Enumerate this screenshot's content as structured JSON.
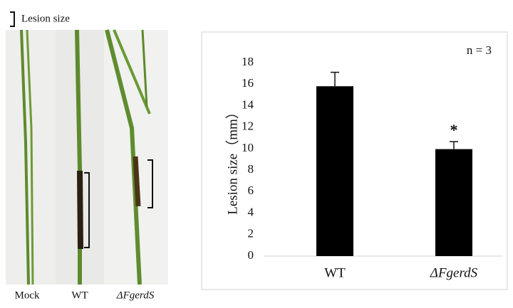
{
  "photo": {
    "legend": "Lesion size",
    "labels": [
      "Mock",
      "WT",
      "ΔFgerdS"
    ]
  },
  "chart_data": {
    "type": "bar",
    "annotation": "n = 3",
    "significance": "*",
    "y_label": "Lesion size（mm）",
    "categories": [
      "WT",
      "ΔFgerdS"
    ],
    "values": [
      15.8,
      9.95
    ],
    "errors": [
      1.3,
      0.7
    ],
    "color": "#000000",
    "ylim": [
      0,
      18
    ],
    "yticks": [
      0,
      2,
      4,
      6,
      8,
      10,
      12,
      14,
      16,
      18
    ],
    "grid": false
  }
}
